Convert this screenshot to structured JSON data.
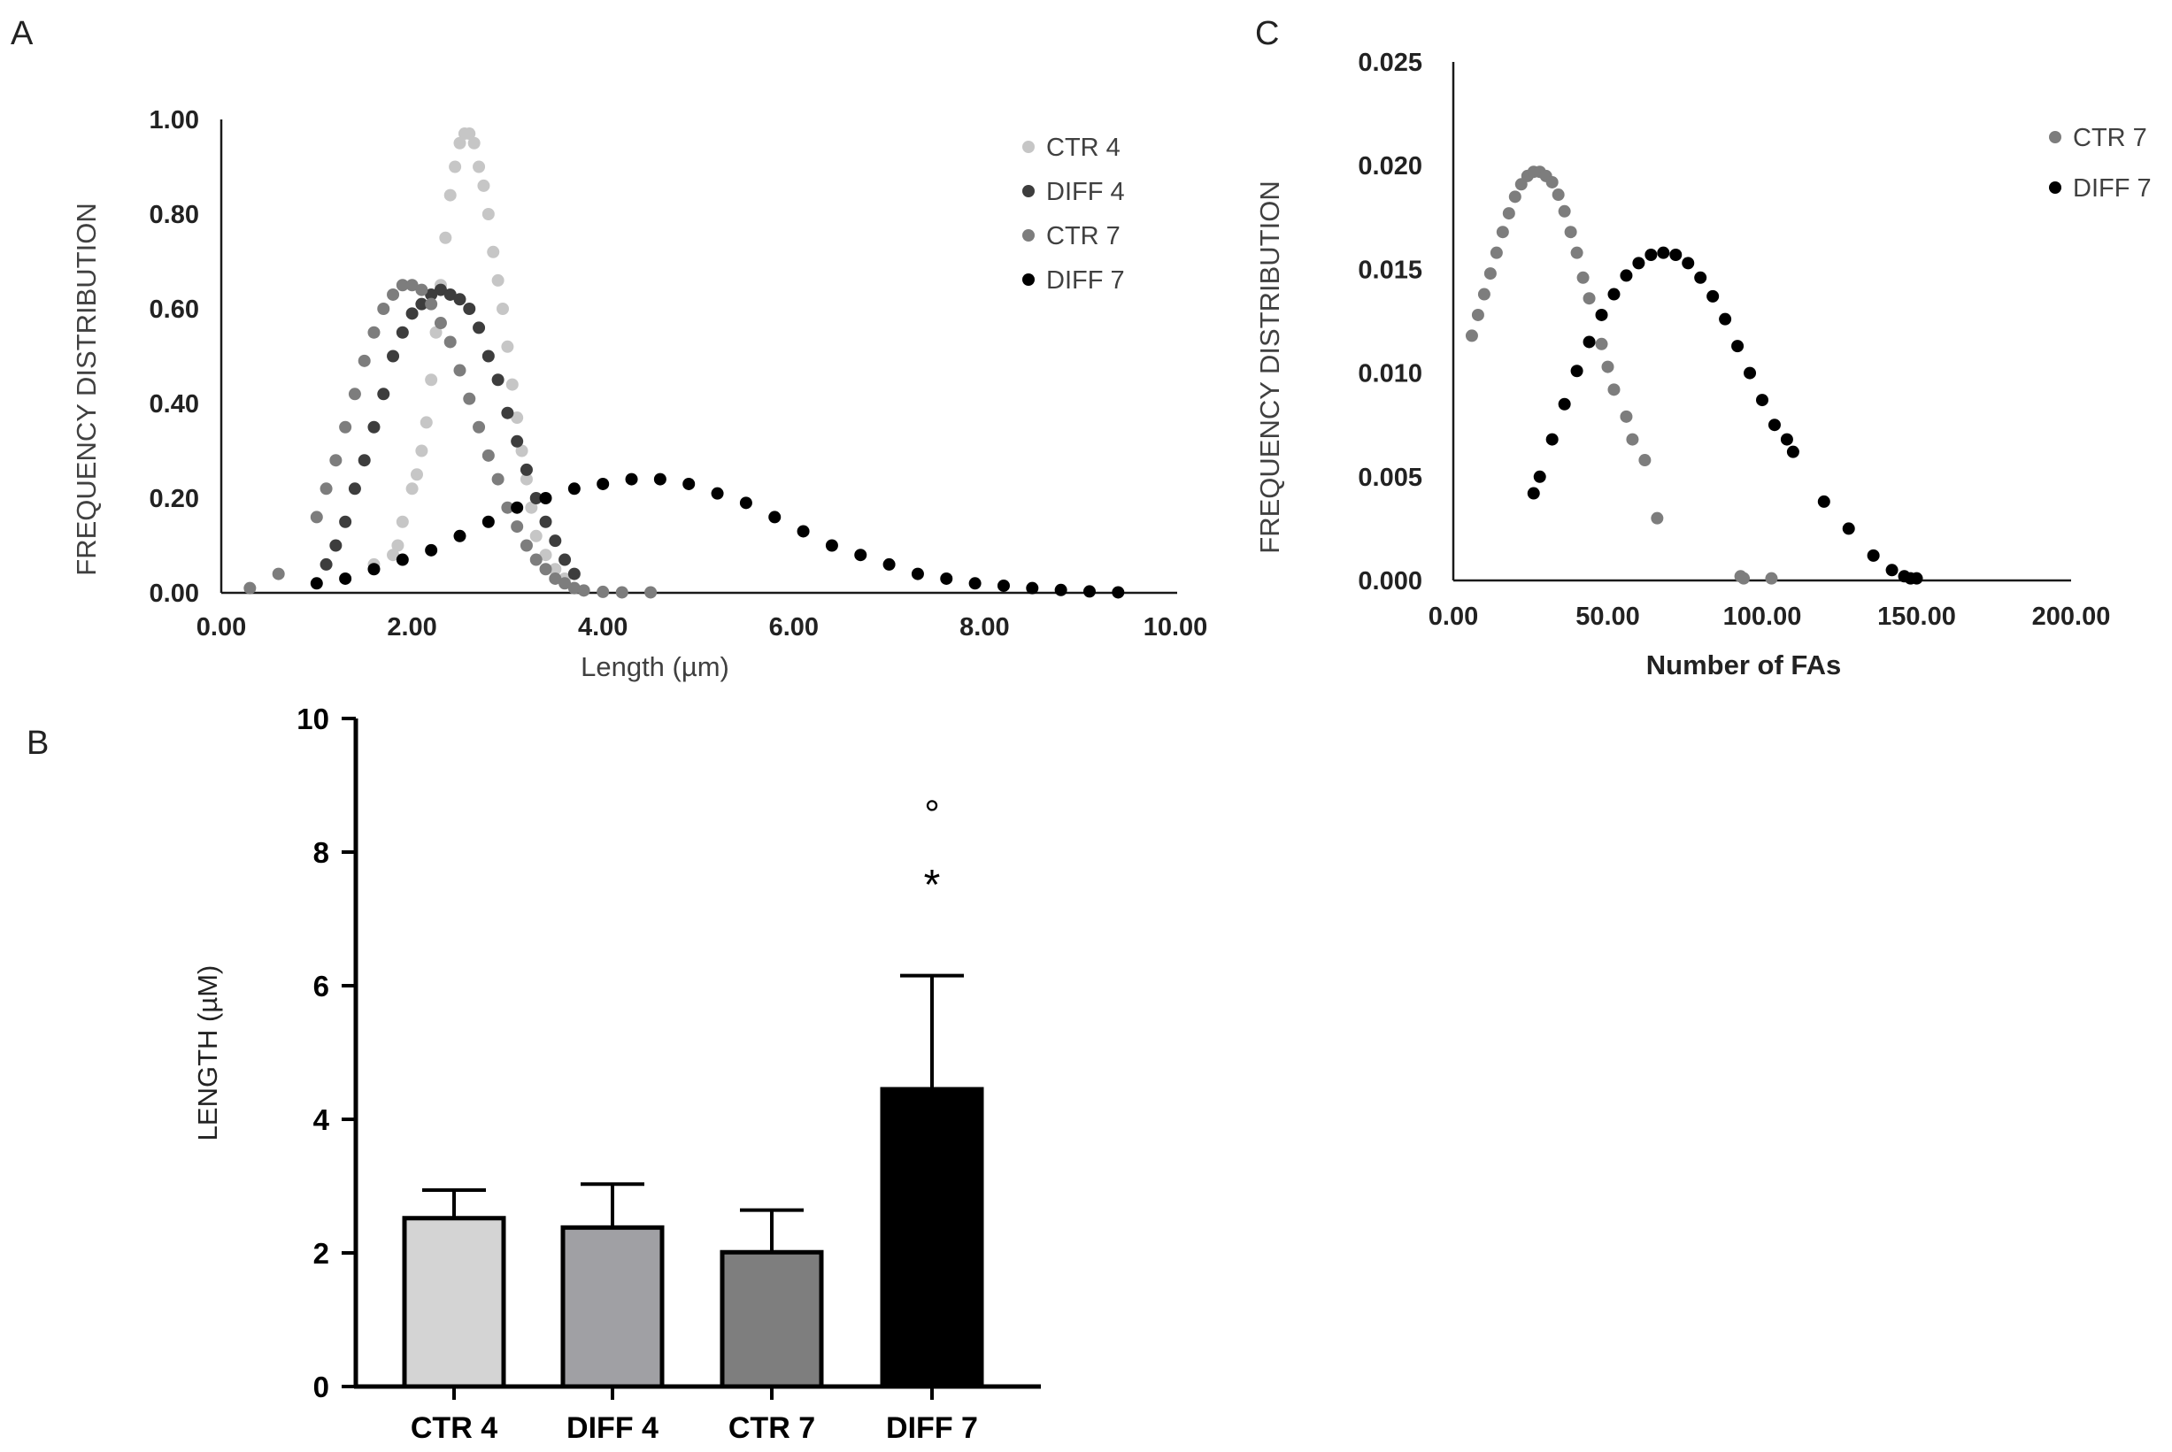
{
  "chart_data": [
    {
      "panel": "A",
      "type": "scatter",
      "xlabel": "Length (µm)",
      "ylabel": "FREQUENCY DISTRIBUTION",
      "xlim": [
        0,
        10
      ],
      "ylim": [
        0,
        1
      ],
      "xticks": [
        "0.00",
        "2.00",
        "4.00",
        "6.00",
        "8.00",
        "10.00"
      ],
      "yticks": [
        "0.00",
        "0.20",
        "0.40",
        "0.60",
        "0.80",
        "1.00"
      ],
      "legend_position": "top-right",
      "series": [
        {
          "name": "CTR 4",
          "color": "#c6c6c6",
          "x": [
            1.6,
            1.8,
            1.85,
            1.9,
            2.0,
            2.05,
            2.1,
            2.15,
            2.2,
            2.25,
            2.3,
            2.35,
            2.4,
            2.45,
            2.5,
            2.55,
            2.6,
            2.65,
            2.7,
            2.75,
            2.8,
            2.85,
            2.9,
            2.95,
            3.0,
            3.05,
            3.1,
            3.15,
            3.2,
            3.25,
            3.3,
            3.4,
            3.5,
            3.6,
            3.7
          ],
          "y": [
            0.06,
            0.08,
            0.1,
            0.15,
            0.22,
            0.25,
            0.3,
            0.36,
            0.45,
            0.55,
            0.65,
            0.75,
            0.84,
            0.9,
            0.95,
            0.97,
            0.97,
            0.95,
            0.9,
            0.86,
            0.8,
            0.72,
            0.66,
            0.6,
            0.52,
            0.44,
            0.37,
            0.3,
            0.24,
            0.18,
            0.12,
            0.08,
            0.05,
            0.03,
            0.01
          ]
        },
        {
          "name": "DIFF 4",
          "color": "#3d3d3d",
          "x": [
            1.1,
            1.2,
            1.3,
            1.4,
            1.5,
            1.6,
            1.7,
            1.8,
            1.9,
            2.0,
            2.1,
            2.2,
            2.3,
            2.4,
            2.5,
            2.6,
            2.7,
            2.8,
            2.9,
            3.0,
            3.1,
            3.2,
            3.3,
            3.4,
            3.5,
            3.6,
            3.7
          ],
          "y": [
            0.06,
            0.1,
            0.15,
            0.22,
            0.28,
            0.35,
            0.42,
            0.5,
            0.55,
            0.59,
            0.61,
            0.63,
            0.64,
            0.63,
            0.62,
            0.6,
            0.56,
            0.5,
            0.45,
            0.38,
            0.32,
            0.26,
            0.2,
            0.15,
            0.11,
            0.07,
            0.04
          ]
        },
        {
          "name": "CTR 7",
          "color": "#7d7d7d",
          "x": [
            0.3,
            0.6,
            1.0,
            1.1,
            1.2,
            1.3,
            1.4,
            1.5,
            1.6,
            1.7,
            1.8,
            1.9,
            2.0,
            2.1,
            2.2,
            2.3,
            2.4,
            2.5,
            2.6,
            2.7,
            2.8,
            2.9,
            3.0,
            3.1,
            3.2,
            3.3,
            3.4,
            3.5,
            3.6,
            3.7,
            3.8,
            4.0,
            4.2,
            4.5
          ],
          "y": [
            0.01,
            0.04,
            0.16,
            0.22,
            0.28,
            0.35,
            0.42,
            0.49,
            0.55,
            0.6,
            0.63,
            0.65,
            0.65,
            0.64,
            0.61,
            0.57,
            0.53,
            0.47,
            0.41,
            0.35,
            0.29,
            0.24,
            0.18,
            0.14,
            0.1,
            0.07,
            0.05,
            0.03,
            0.02,
            0.01,
            0.005,
            0.002,
            0.001,
            0.001
          ]
        },
        {
          "name": "DIFF 7",
          "color": "#000000",
          "x": [
            1.0,
            1.3,
            1.6,
            1.9,
            2.2,
            2.5,
            2.8,
            3.1,
            3.4,
            3.7,
            4.0,
            4.3,
            4.6,
            4.9,
            5.2,
            5.5,
            5.8,
            6.1,
            6.4,
            6.7,
            7.0,
            7.3,
            7.6,
            7.9,
            8.2,
            8.5,
            8.8,
            9.1,
            9.4
          ],
          "y": [
            0.02,
            0.03,
            0.05,
            0.07,
            0.09,
            0.12,
            0.15,
            0.18,
            0.2,
            0.22,
            0.23,
            0.24,
            0.24,
            0.23,
            0.21,
            0.19,
            0.16,
            0.13,
            0.1,
            0.08,
            0.06,
            0.04,
            0.03,
            0.02,
            0.015,
            0.01,
            0.006,
            0.003,
            0.001
          ]
        }
      ]
    },
    {
      "panel": "B",
      "type": "bar",
      "ylabel": "LENGTH (µM)",
      "ylim": [
        0,
        10
      ],
      "yticks": [
        "0",
        "2",
        "4",
        "6",
        "8",
        "10"
      ],
      "categories": [
        "CTR 4",
        "DIFF 4",
        "CTR 7",
        "DIFF 7"
      ],
      "values": [
        2.52,
        2.38,
        2.01,
        4.45
      ],
      "errors": [
        0.42,
        0.65,
        0.63,
        1.7
      ],
      "colors": [
        "#d4d4d4",
        "#a0a0a4",
        "#7e7e7e",
        "#000000"
      ],
      "annotations": [
        {
          "category": "DIFF 7",
          "symbols": [
            "°",
            "*"
          ]
        }
      ]
    },
    {
      "panel": "C",
      "type": "scatter",
      "xlabel": "Number of FAs",
      "ylabel": "FREQUENCY DISTRIBUTION",
      "xlim": [
        0,
        200
      ],
      "ylim": [
        0,
        0.025
      ],
      "xticks": [
        "0.00",
        "50.00",
        "100.00",
        "150.00",
        "200.00"
      ],
      "yticks": [
        "0.000",
        "0.005",
        "0.010",
        "0.015",
        "0.020",
        "0.025"
      ],
      "legend_position": "top-right",
      "series": [
        {
          "name": "CTR 7",
          "color": "#7d7d7d",
          "x": [
            6,
            8,
            10,
            12,
            14,
            16,
            18,
            20,
            22,
            24,
            26,
            28,
            30,
            32,
            34,
            36,
            38,
            40,
            42,
            44,
            48,
            50,
            52,
            56,
            58,
            62,
            66,
            93,
            94,
            103
          ],
          "y": [
            0.0118,
            0.0128,
            0.0138,
            0.0148,
            0.0158,
            0.0168,
            0.0177,
            0.0185,
            0.0191,
            0.0195,
            0.0197,
            0.0197,
            0.0195,
            0.0192,
            0.0186,
            0.0178,
            0.0168,
            0.0158,
            0.0146,
            0.0136,
            0.0114,
            0.0103,
            0.0092,
            0.0079,
            0.0068,
            0.0058,
            0.003,
            0.0002,
            0.0001,
            0.0001
          ]
        },
        {
          "name": "DIFF 7",
          "color": "#000000",
          "x": [
            26,
            28,
            32,
            36,
            40,
            44,
            48,
            52,
            56,
            60,
            64,
            68,
            72,
            76,
            80,
            84,
            88,
            92,
            96,
            100,
            104,
            108,
            110,
            120,
            128,
            136,
            142,
            146,
            148,
            150
          ],
          "y": [
            0.0042,
            0.005,
            0.0068,
            0.0085,
            0.0101,
            0.0115,
            0.0128,
            0.0138,
            0.0147,
            0.0153,
            0.0157,
            0.0158,
            0.0157,
            0.0153,
            0.0146,
            0.0137,
            0.0126,
            0.0113,
            0.01,
            0.0087,
            0.0075,
            0.0068,
            0.0062,
            0.0038,
            0.0025,
            0.0012,
            0.0005,
            0.0002,
            0.0001,
            0.0001
          ]
        }
      ]
    }
  ],
  "labels": {
    "panel_a": "A",
    "panel_b": "B",
    "panel_c": "C"
  }
}
